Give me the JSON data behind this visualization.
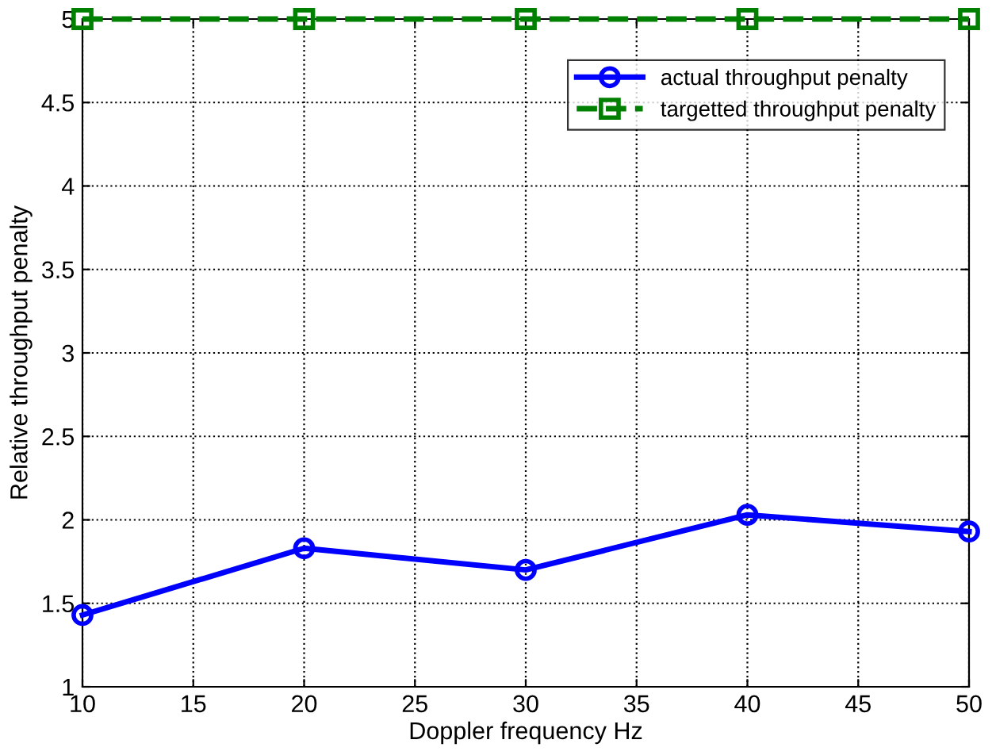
{
  "chart_data": {
    "type": "line",
    "xlabel": "Doppler frequency Hz",
    "ylabel": "Relative throughput penalty",
    "x": [
      10,
      20,
      30,
      40,
      50
    ],
    "series": [
      {
        "name": "actual throughput penalty",
        "color": "#0000ff",
        "values": [
          1.43,
          1.83,
          1.7,
          2.03,
          1.93
        ],
        "marker": "circle",
        "line_style": "solid"
      },
      {
        "name": "targetted throughput penalty",
        "color": "#008000",
        "values": [
          5,
          5,
          5,
          5,
          5
        ],
        "marker": "square",
        "line_style": "dashed"
      }
    ],
    "xlim": [
      10,
      50
    ],
    "ylim": [
      1,
      5
    ],
    "xticks": [
      10,
      15,
      20,
      25,
      30,
      35,
      40,
      45,
      50
    ],
    "yticks": [
      1,
      1.5,
      2,
      2.5,
      3,
      3.5,
      4,
      4.5,
      5
    ],
    "grid": true,
    "legend": "top right"
  }
}
